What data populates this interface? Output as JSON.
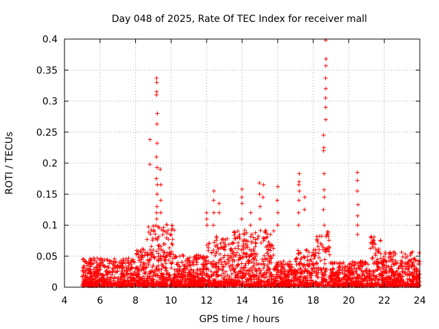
{
  "chart_data": {
    "type": "scatter",
    "title": "Day 048 of 2025, Rate Of TEC Index for receiver mall",
    "xlabel": "GPS time / hours",
    "ylabel": "ROTI / TECUs",
    "xlim": [
      4,
      24
    ],
    "ylim": [
      0,
      0.4
    ],
    "x_ticks": [
      4,
      6,
      8,
      10,
      12,
      14,
      16,
      18,
      20,
      22,
      24
    ],
    "y_ticks": [
      0,
      0.05,
      0.1,
      0.15,
      0.2,
      0.25,
      0.3,
      0.35,
      0.4
    ],
    "x_tick_labels": [
      "4",
      "6",
      "8",
      "10",
      "12",
      "14",
      "16",
      "18",
      "20",
      "22",
      "24"
    ],
    "y_tick_labels": [
      "0",
      "0.05",
      "0.1",
      "0.15",
      "0.2",
      "0.25",
      "0.3",
      "0.35",
      "0.4"
    ],
    "grid": true,
    "marker": "+",
    "marker_color": "#ff0000",
    "x_data_range": [
      5.0,
      24.0
    ],
    "bands": [
      {
        "x": [
          5.0,
          8.0
        ],
        "max": 0.045
      },
      {
        "x": [
          8.0,
          8.6
        ],
        "max": 0.06
      },
      {
        "x": [
          8.6,
          10.2
        ],
        "max": 0.1
      },
      {
        "x": [
          10.2,
          12.0
        ],
        "max": 0.05
      },
      {
        "x": [
          12.0,
          13.5
        ],
        "max": 0.08
      },
      {
        "x": [
          13.5,
          15.8
        ],
        "max": 0.09
      },
      {
        "x": [
          15.8,
          17.0
        ],
        "max": 0.04
      },
      {
        "x": [
          17.0,
          18.2
        ],
        "max": 0.06
      },
      {
        "x": [
          18.2,
          19.0
        ],
        "max": 0.09
      },
      {
        "x": [
          19.0,
          21.2
        ],
        "max": 0.04
      },
      {
        "x": [
          21.2,
          21.8
        ],
        "max": 0.08
      },
      {
        "x": [
          21.8,
          24.0
        ],
        "max": 0.055
      }
    ],
    "spikes": [
      {
        "x": 8.8,
        "y": [
          0.198,
          0.238,
          0.06
        ]
      },
      {
        "x": 9.2,
        "y": [
          0.337,
          0.33,
          0.315,
          0.31,
          0.28,
          0.263,
          0.232,
          0.21,
          0.193,
          0.175,
          0.165,
          0.15,
          0.13,
          0.12,
          0.11
        ]
      },
      {
        "x": 9.4,
        "y": [
          0.19,
          0.165,
          0.14,
          0.12
        ]
      },
      {
        "x": 12.0,
        "y": [
          0.12,
          0.11,
          0.1
        ]
      },
      {
        "x": 12.4,
        "y": [
          0.155,
          0.14,
          0.12,
          0.1
        ]
      },
      {
        "x": 12.7,
        "y": [
          0.135,
          0.12
        ]
      },
      {
        "x": 14.0,
        "y": [
          0.158,
          0.145,
          0.135,
          0.11
        ]
      },
      {
        "x": 14.5,
        "y": [
          0.12,
          0.1
        ]
      },
      {
        "x": 15.0,
        "y": [
          0.168,
          0.15,
          0.13,
          0.11
        ]
      },
      {
        "x": 15.2,
        "y": [
          0.165,
          0.145
        ]
      },
      {
        "x": 16.0,
        "y": [
          0.162,
          0.14,
          0.12,
          0.1
        ]
      },
      {
        "x": 17.2,
        "y": [
          0.183,
          0.17,
          0.165,
          0.155,
          0.14,
          0.12,
          0.1
        ]
      },
      {
        "x": 17.5,
        "y": [
          0.145,
          0.125
        ]
      },
      {
        "x": 18.6,
        "y": [
          0.245,
          0.225,
          0.22,
          0.183,
          0.157,
          0.145,
          0.125,
          0.1
        ]
      },
      {
        "x": 18.72,
        "y": [
          0.398,
          0.368,
          0.357,
          0.337,
          0.32,
          0.305,
          0.29,
          0.27
        ]
      },
      {
        "x": 20.5,
        "y": [
          0.185,
          0.172,
          0.155,
          0.133,
          0.115,
          0.1,
          0.085
        ]
      }
    ]
  }
}
